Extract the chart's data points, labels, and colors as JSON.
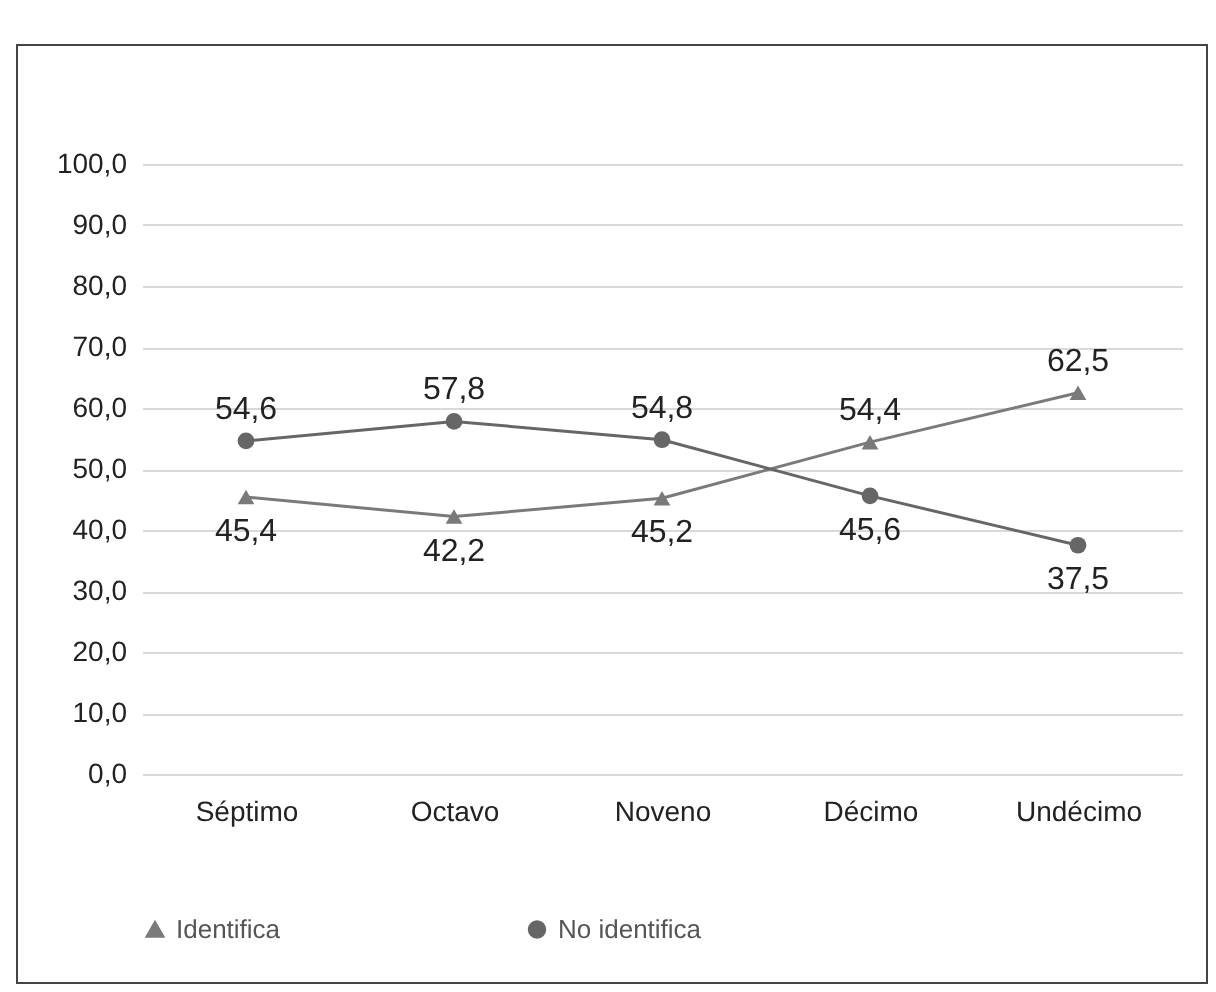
{
  "chart_data": {
    "type": "line",
    "categories": [
      "Séptimo",
      "Octavo",
      "Noveno",
      "Décimo",
      "Undécimo"
    ],
    "series": [
      {
        "name": "Identifica",
        "color": "#7a7a7a",
        "marker": "triangle",
        "values": [
          45.4,
          42.2,
          45.2,
          54.4,
          62.5
        ],
        "value_labels": [
          "45,4",
          "42,2",
          "45,2",
          "54,4",
          "62,5"
        ]
      },
      {
        "name": "No identifica",
        "color": "#666666",
        "marker": "circle",
        "values": [
          54.6,
          57.8,
          54.8,
          45.6,
          37.5
        ],
        "value_labels": [
          "54,6",
          "57,8",
          "54,8",
          "45,6",
          "37,5"
        ]
      }
    ],
    "ylim": [
      0,
      100
    ],
    "yticks": [
      {
        "value": 0,
        "label": "0,0"
      },
      {
        "value": 10,
        "label": "10,0"
      },
      {
        "value": 20,
        "label": "20,0"
      },
      {
        "value": 30,
        "label": "30,0"
      },
      {
        "value": 40,
        "label": "40,0"
      },
      {
        "value": 50,
        "label": "50,0"
      },
      {
        "value": 60,
        "label": "60,0"
      },
      {
        "value": 70,
        "label": "70,0"
      },
      {
        "value": 80,
        "label": "80,0"
      },
      {
        "value": 90,
        "label": "90,0"
      },
      {
        "value": 100,
        "label": "100,0"
      }
    ],
    "grid": "y",
    "legend": "bottom",
    "line_style": "solid"
  }
}
